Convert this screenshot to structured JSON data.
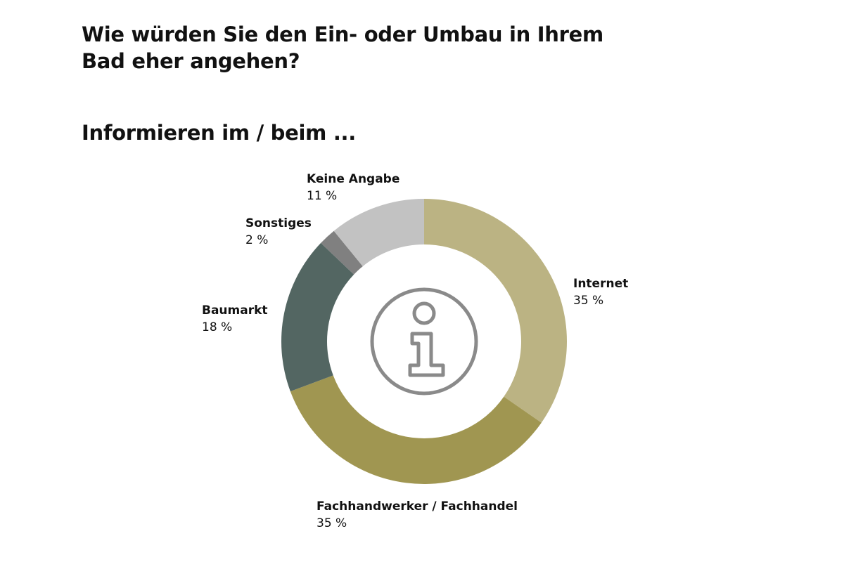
{
  "header": {
    "title": "Wie würden Sie den Ein- oder Umbau in Ihrem Bad eher angehen?",
    "subtitle": "Informieren im / beim ..."
  },
  "center_icon": "info-icon",
  "chart_data": {
    "type": "pie",
    "variant": "donut",
    "title": "Wie würden Sie den Ein- oder Umbau in Ihrem Bad eher angehen?",
    "subtitle": "Informieren im / beim ...",
    "legend": "none",
    "slices": [
      {
        "label": "Internet",
        "value": 35,
        "value_label": "35 %",
        "color": "#BBB383"
      },
      {
        "label": "Fachhandwerker / Fachhandel",
        "value": 35,
        "value_label": "35 %",
        "color": "#A09651"
      },
      {
        "label": "Baumarkt",
        "value": 18,
        "value_label": "18 %",
        "color": "#536662"
      },
      {
        "label": "Sonstiges",
        "value": 2,
        "value_label": "2 %",
        "color": "#808080"
      },
      {
        "label": "Keine Angabe",
        "value": 11,
        "value_label": "11 %",
        "color": "#C2C2C2"
      }
    ]
  }
}
